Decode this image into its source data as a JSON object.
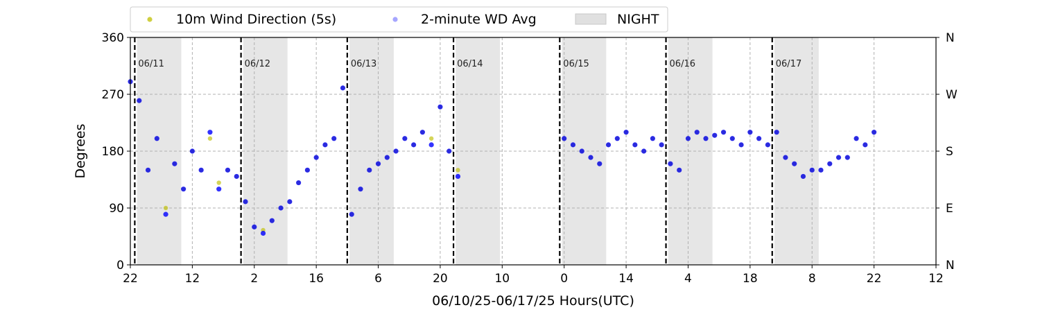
{
  "chart_data": {
    "type": "scatter",
    "xlabel": "06/10/25-06/17/25  Hours(UTC)",
    "ylabel": "Degrees",
    "ylim": [
      0,
      360
    ],
    "yticks": [
      0,
      90,
      180,
      270,
      360
    ],
    "right_ticks": [
      {
        "value": 0,
        "label": "N"
      },
      {
        "value": 90,
        "label": "E"
      },
      {
        "value": 180,
        "label": "S"
      },
      {
        "value": 270,
        "label": "W"
      },
      {
        "value": 360,
        "label": "N"
      }
    ],
    "xlim": [
      0,
      182
    ],
    "x_unit": "hours since 06/10 22:00 UTC",
    "xticks": [
      {
        "x": 0,
        "label": "22"
      },
      {
        "x": 14,
        "label": "12"
      },
      {
        "x": 28,
        "label": "2"
      },
      {
        "x": 42,
        "label": "16"
      },
      {
        "x": 56,
        "label": "6"
      },
      {
        "x": 70,
        "label": "20"
      },
      {
        "x": 84,
        "label": "10"
      },
      {
        "x": 98,
        "label": "0"
      },
      {
        "x": 112,
        "label": "14"
      },
      {
        "x": 126,
        "label": "4"
      },
      {
        "x": 140,
        "label": "18"
      },
      {
        "x": 154,
        "label": "8"
      },
      {
        "x": 168,
        "label": "22"
      },
      {
        "x": 182,
        "label": "12"
      }
    ],
    "grid": true,
    "legend_position": "top-left",
    "legend": [
      {
        "label": "10m Wind Direction (5s)",
        "kind": "marker",
        "color": "#bfbf00"
      },
      {
        "label": "2-minute WD Avg",
        "kind": "marker",
        "color": "#0000ff"
      },
      {
        "label": "NIGHT",
        "kind": "patch",
        "color": "#e0e0e0"
      }
    ],
    "day_markers": [
      {
        "x": 1,
        "label": "06/11"
      },
      {
        "x": 25,
        "label": "06/12"
      },
      {
        "x": 49,
        "label": "06/13"
      },
      {
        "x": 73,
        "label": "06/14"
      },
      {
        "x": 97,
        "label": "06/15"
      },
      {
        "x": 121,
        "label": "06/16"
      },
      {
        "x": 145,
        "label": "06/17"
      }
    ],
    "night_spans": [
      [
        1.5,
        11.5
      ],
      [
        25.5,
        35.5
      ],
      [
        49.5,
        59.5
      ],
      [
        73.5,
        83.5
      ],
      [
        97.5,
        107.5
      ],
      [
        121.5,
        131.5
      ],
      [
        145.5,
        155.5
      ]
    ],
    "data_gaps": [
      [
        74.5,
        96.5
      ]
    ],
    "series": [
      {
        "name": "10m Wind Direction (5s)",
        "color": "#bfbf00",
        "x": [
          0,
          2,
          4,
          6,
          8,
          10,
          12,
          14,
          16,
          18,
          20,
          22,
          24,
          26,
          28,
          30,
          32,
          34,
          36,
          38,
          40,
          42,
          44,
          46,
          48,
          50,
          52,
          54,
          56,
          58,
          60,
          62,
          64,
          66,
          68,
          70,
          72,
          74,
          98,
          100,
          102,
          104,
          106,
          108,
          110,
          112,
          114,
          116,
          118,
          120,
          122,
          124,
          126,
          128,
          130,
          132,
          134,
          136,
          138,
          140,
          142,
          144,
          146,
          148,
          150,
          152,
          154,
          156,
          158,
          160,
          162,
          164,
          166,
          168
        ],
        "y": [
          290,
          260,
          150,
          200,
          90,
          160,
          120,
          180,
          150,
          200,
          130,
          150,
          140,
          100,
          60,
          55,
          70,
          90,
          100,
          130,
          150,
          170,
          190,
          200,
          280,
          80,
          120,
          150,
          160,
          170,
          180,
          200,
          190,
          210,
          200,
          250,
          180,
          150,
          200,
          190,
          180,
          170,
          160,
          190,
          200,
          210,
          190,
          180,
          200,
          190,
          160,
          150,
          200,
          210,
          200,
          205,
          210,
          200,
          190,
          210,
          200,
          190,
          210,
          170,
          160,
          140,
          150,
          150,
          160,
          170,
          170,
          200,
          190,
          210
        ]
      },
      {
        "name": "2-minute WD Avg",
        "color": "#0000ff",
        "x": [
          0,
          2,
          4,
          6,
          8,
          10,
          12,
          14,
          16,
          18,
          20,
          22,
          24,
          26,
          28,
          30,
          32,
          34,
          36,
          38,
          40,
          42,
          44,
          46,
          48,
          50,
          52,
          54,
          56,
          58,
          60,
          62,
          64,
          66,
          68,
          70,
          72,
          74,
          98,
          100,
          102,
          104,
          106,
          108,
          110,
          112,
          114,
          116,
          118,
          120,
          122,
          124,
          126,
          128,
          130,
          132,
          134,
          136,
          138,
          140,
          142,
          144,
          146,
          148,
          150,
          152,
          154,
          156,
          158,
          160,
          162,
          164,
          166,
          168
        ],
        "y": [
          290,
          260,
          150,
          200,
          80,
          160,
          120,
          180,
          150,
          210,
          120,
          150,
          140,
          100,
          60,
          50,
          70,
          90,
          100,
          130,
          150,
          170,
          190,
          200,
          280,
          80,
          120,
          150,
          160,
          170,
          180,
          200,
          190,
          210,
          190,
          250,
          180,
          140,
          200,
          190,
          180,
          170,
          160,
          190,
          200,
          210,
          190,
          180,
          200,
          190,
          160,
          150,
          200,
          210,
          200,
          205,
          210,
          200,
          190,
          210,
          200,
          190,
          210,
          170,
          160,
          140,
          150,
          150,
          160,
          170,
          170,
          200,
          190,
          210
        ]
      }
    ]
  }
}
